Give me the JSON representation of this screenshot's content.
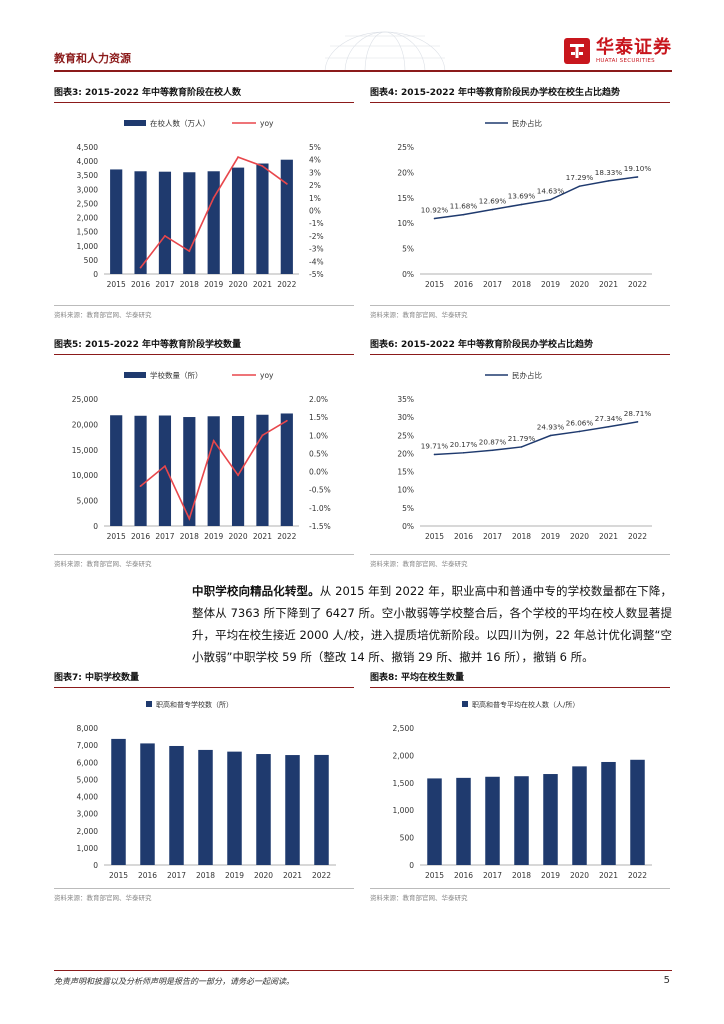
{
  "header": {
    "section_title": "教育和人力资源",
    "logo_cn": "华泰证券",
    "logo_en": "HUATAI SECURITIES"
  },
  "figures": {
    "fig3": {
      "title": "图表3:  2015-2022 年中等教育阶段在校人数",
      "source": "资料来源：教育部官网、华泰研究"
    },
    "fig4": {
      "title": "图表4:  2015-2022 年中等教育阶段民办学校在校生占比趋势",
      "source": "资料来源：教育部官网、华泰研究"
    },
    "fig5": {
      "title": "图表5:  2015-2022 年中等教育阶段学校数量",
      "source": "资料来源：教育部官网、华泰研究"
    },
    "fig6": {
      "title": "图表6:  2015-2022 年中等教育阶段民办学校占比趋势",
      "source": "资料来源：教育部官网、华泰研究"
    },
    "fig7": {
      "title": "图表7:  中职学校数量",
      "source": "资料来源：教育部官网、华泰研究"
    },
    "fig8": {
      "title": "图表8:  平均在校生数量",
      "source": "资料来源：教育部官网、华泰研究"
    }
  },
  "paragraph": {
    "lead": "中职学校向精品化转型。",
    "body": "从 2015 年到 2022 年，职业高中和普通中专的学校数量都在下降，整体从 7363 所下降到了 6427 所。空小散弱等学校整合后，各个学校的平均在校人数显著提升，平均在校生接近 2000 人/校，进入提质培优新阶段。以四川为例，22 年总计优化调整“空小散弱”中职学校 59 所（整改 14 所、撤销 29 所、撤并 16 所），撤销 6 所。"
  },
  "footer": {
    "disclaimer": "免责声明和披露以及分析师声明是报告的一部分，请务必一起阅读。",
    "page": "5"
  },
  "colors": {
    "bar": "#1f3a6e",
    "yoy": "#e8474c",
    "line": "#1f3a6e",
    "accent": "#8b1a1a"
  },
  "chart_data": [
    {
      "id": "fig3",
      "type": "bar+line",
      "categories": [
        "2015",
        "2016",
        "2017",
        "2018",
        "2019",
        "2020",
        "2021",
        "2022"
      ],
      "series": [
        {
          "name": "在校人数（万人）",
          "type": "bar",
          "axis": "left",
          "values": [
            3705,
            3640,
            3625,
            3605,
            3640,
            3770,
            3915,
            4050
          ]
        },
        {
          "name": "yoy",
          "type": "line",
          "axis": "right",
          "values": [
            null,
            -4.5,
            -2.0,
            -3.2,
            1.0,
            4.2,
            3.5,
            2.1
          ]
        }
      ],
      "ylim": [
        0,
        4500
      ],
      "yticks": [
        "0",
        "500",
        "1,000",
        "1,500",
        "2,000",
        "2,500",
        "3,000",
        "3,500",
        "4,000",
        "4,500"
      ],
      "y2lim": [
        -5,
        5
      ],
      "y2ticks": [
        "-5%",
        "-4%",
        "-3%",
        "-2%",
        "-1%",
        "0%",
        "1%",
        "2%",
        "3%",
        "4%",
        "5%"
      ]
    },
    {
      "id": "fig4",
      "type": "line",
      "categories": [
        "2015",
        "2016",
        "2017",
        "2018",
        "2019",
        "2020",
        "2021",
        "2022"
      ],
      "series": [
        {
          "name": "民办占比",
          "values": [
            10.92,
            11.68,
            12.69,
            13.69,
            14.63,
            17.29,
            18.33,
            19.1
          ],
          "labels": [
            "10.92%",
            "11.68%",
            "12.69%",
            "13.69%",
            "14.63%",
            "17.29%",
            "18.33%",
            "19.10%"
          ]
        }
      ],
      "ylim": [
        0,
        25
      ],
      "yticks": [
        "0%",
        "5%",
        "10%",
        "15%",
        "20%",
        "25%"
      ]
    },
    {
      "id": "fig5",
      "type": "bar+line",
      "categories": [
        "2015",
        "2016",
        "2017",
        "2018",
        "2019",
        "2020",
        "2021",
        "2022"
      ],
      "series": [
        {
          "name": "学校数量（所）",
          "type": "bar",
          "axis": "left",
          "values": [
            21800,
            21700,
            21750,
            21450,
            21600,
            21650,
            21900,
            22150
          ]
        },
        {
          "name": "yoy",
          "type": "line",
          "axis": "right",
          "values": [
            null,
            -0.4,
            0.15,
            -1.3,
            0.85,
            -0.1,
            1.0,
            1.4
          ]
        }
      ],
      "ylim": [
        0,
        25000
      ],
      "yticks": [
        "0",
        "5,000",
        "10,000",
        "15,000",
        "20,000",
        "25,000"
      ],
      "y2lim": [
        -1.5,
        2.0
      ],
      "y2ticks": [
        "-1.5%",
        "-1.0%",
        "-0.5%",
        "0.0%",
        "0.5%",
        "1.0%",
        "1.5%",
        "2.0%"
      ]
    },
    {
      "id": "fig6",
      "type": "line",
      "categories": [
        "2015",
        "2016",
        "2017",
        "2018",
        "2019",
        "2020",
        "2021",
        "2022"
      ],
      "series": [
        {
          "name": "民办占比",
          "values": [
            19.71,
            20.17,
            20.87,
            21.79,
            24.93,
            26.06,
            27.34,
            28.71
          ],
          "labels": [
            "19.71%",
            "20.17%",
            "20.87%",
            "21.79%",
            "24.93%",
            "26.06%",
            "27.34%",
            "28.71%"
          ]
        }
      ],
      "ylim": [
        0,
        35
      ],
      "yticks": [
        "0%",
        "5%",
        "10%",
        "15%",
        "20%",
        "25%",
        "30%",
        "35%"
      ]
    },
    {
      "id": "fig7",
      "type": "bar",
      "categories": [
        "2015",
        "2016",
        "2017",
        "2018",
        "2019",
        "2020",
        "2021",
        "2022"
      ],
      "series": [
        {
          "name": "职高和普专学校数（所）",
          "values": [
            7363,
            7100,
            6950,
            6720,
            6620,
            6480,
            6420,
            6427
          ]
        }
      ],
      "ylim": [
        0,
        8000
      ],
      "yticks": [
        "0",
        "1,000",
        "2,000",
        "3,000",
        "4,000",
        "5,000",
        "6,000",
        "7,000",
        "8,000"
      ]
    },
    {
      "id": "fig8",
      "type": "bar",
      "categories": [
        "2015",
        "2016",
        "2017",
        "2018",
        "2019",
        "2020",
        "2021",
        "2022"
      ],
      "series": [
        {
          "name": "职高和普专平均在校人数（人/所）",
          "values": [
            1580,
            1590,
            1610,
            1620,
            1660,
            1800,
            1880,
            1920
          ]
        }
      ],
      "ylim": [
        0,
        2500
      ],
      "yticks": [
        "0",
        "500",
        "1,000",
        "1,500",
        "2,000",
        "2,500"
      ]
    }
  ]
}
